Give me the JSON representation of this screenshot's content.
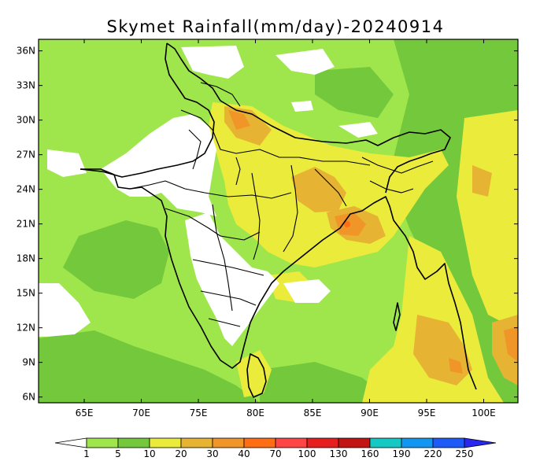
{
  "title": "Skymet Rainfall(mm/day)-20240914",
  "map": {
    "lon_range": [
      61.0,
      103.0
    ],
    "lat_range": [
      5.5,
      37.0
    ],
    "x_ticks": [
      {
        "value": 65,
        "label": "65E"
      },
      {
        "value": 70,
        "label": "70E"
      },
      {
        "value": 75,
        "label": "75E"
      },
      {
        "value": 80,
        "label": "80E"
      },
      {
        "value": 85,
        "label": "85E"
      },
      {
        "value": 90,
        "label": "90E"
      },
      {
        "value": 95,
        "label": "95E"
      },
      {
        "value": 100,
        "label": "100E"
      }
    ],
    "y_ticks": [
      {
        "value": 36,
        "label": "36N"
      },
      {
        "value": 33,
        "label": "33N"
      },
      {
        "value": 30,
        "label": "30N"
      },
      {
        "value": 27,
        "label": "27N"
      },
      {
        "value": 24,
        "label": "24N"
      },
      {
        "value": 21,
        "label": "21N"
      },
      {
        "value": 18,
        "label": "18N"
      },
      {
        "value": 15,
        "label": "15N"
      },
      {
        "value": 12,
        "label": "12N"
      },
      {
        "value": 9,
        "label": "9N"
      },
      {
        "value": 6,
        "label": "6N"
      }
    ]
  },
  "colorbar": {
    "bins": [
      {
        "color": "#ffffff"
      },
      {
        "color": "#9ee64b"
      },
      {
        "color": "#73c83c"
      },
      {
        "color": "#ebeb3c"
      },
      {
        "color": "#e6b432"
      },
      {
        "color": "#f09628"
      },
      {
        "color": "#ff6e14"
      },
      {
        "color": "#ff4646"
      },
      {
        "color": "#e61e1e"
      },
      {
        "color": "#c31414"
      },
      {
        "color": "#14c8c3"
      },
      {
        "color": "#1496f0"
      },
      {
        "color": "#1e5af5"
      },
      {
        "color": "#2828f0"
      }
    ],
    "labels": [
      "1",
      "5",
      "10",
      "20",
      "30",
      "40",
      "70",
      "100",
      "130",
      "160",
      "190",
      "220",
      "250"
    ]
  },
  "colors": {
    "light_green": "#9ee64b",
    "green": "#73c83c",
    "yellow": "#ebeb3c",
    "orange_light": "#e6b432",
    "orange": "#f09628",
    "red_orange": "#ff6e14",
    "red": "#ff4646"
  }
}
